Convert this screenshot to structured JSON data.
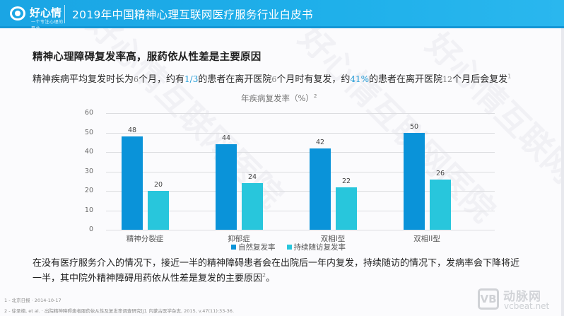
{
  "header": {
    "logo_text": "好心情",
    "logo_sub": "一个专注心理的平台",
    "title": "2019年中国精神心理互联网医疗服务行业白皮书"
  },
  "headline": "精神心理障碍复发率高，服药依从性差是主要原因",
  "subline": {
    "part1": "精神疾病平均复发时长为",
    "num1": "6",
    "part2": "个月，约有",
    "hl1": "1/3",
    "part3": "的患者在离开医院",
    "num2": "6",
    "part4": "个月时有复发，约",
    "hl2": "41%",
    "part5": "的患者在离开医院",
    "num3": "12",
    "part6": "个月后会复发",
    "sup": "1"
  },
  "chart_data": {
    "type": "bar",
    "title": "年疾病复发率（%）",
    "title_sup": "2",
    "categories": [
      "精神分裂症",
      "抑郁症",
      "双相I型",
      "双相II型"
    ],
    "series": [
      {
        "name": "自然复发率",
        "color": "#0a93d9",
        "values": [
          48,
          44,
          42,
          50
        ]
      },
      {
        "name": "持续随访复发率",
        "color": "#28c6dc",
        "values": [
          20,
          24,
          22,
          26
        ]
      }
    ],
    "xlabel": "",
    "ylabel": "",
    "ylim": [
      0,
      60
    ],
    "yticks": [
      0,
      10,
      20,
      30,
      40,
      50,
      60
    ],
    "grid": true,
    "legend_position": "bottom"
  },
  "conclusion": {
    "line1": "在没有医疗服务介入的情况下，接近一半的精神障碍患者会在出院后一年内复发，持续随访的情况下，发病率会下降将近",
    "line2": "一半，其中院外精神障碍用药依从性差是复发的主要原因",
    "sup": "2",
    "end": "。"
  },
  "footnotes": [
    "1 - 北京日报 · 2014-10-17",
    "2 - 徐圣楠, et al. · 出院精神障碍患者服药依从性及复发率调查研究[J]. 内蒙古医学杂志, 2015, v.47(11):33-36."
  ],
  "brand_watermark": {
    "badge": "VB",
    "cn": "动脉网",
    "en": "vcbeat.net"
  },
  "bg_watermark": "好心情互联网医院"
}
